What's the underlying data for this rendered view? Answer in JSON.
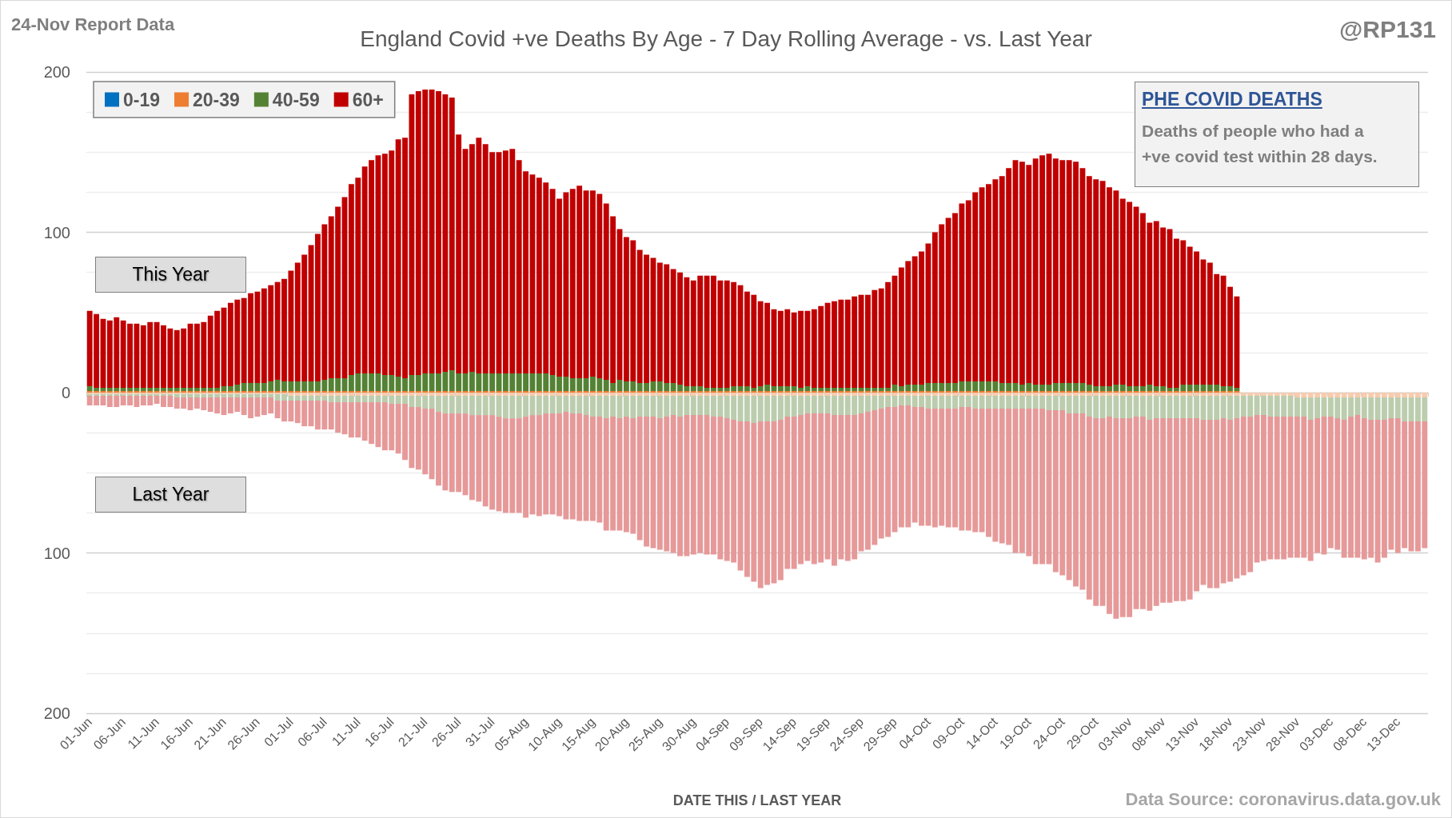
{
  "chart_data": {
    "type": "bar",
    "stacked": true,
    "title": "England Covid +ve Deaths By Age - 7 Day Rolling Average - vs. Last Year",
    "xlabel": "DATE THIS / LAST YEAR",
    "annotations": [
      "24-Nov Report Data",
      "@RP131",
      "This Year",
      "Last Year",
      "PHE COVID DEATHS",
      "Deaths of people who had a +ve covid test within 28 days.",
      "Data Source: coronavirus.data.gov.uk"
    ],
    "categories": [
      "01-Jun",
      null,
      null,
      null,
      null,
      "06-Jun",
      null,
      null,
      null,
      null,
      "11-Jun",
      null,
      null,
      null,
      null,
      "16-Jun",
      null,
      null,
      null,
      null,
      "21-Jun",
      null,
      null,
      null,
      null,
      "26-Jun",
      null,
      null,
      null,
      null,
      "01-Jul",
      null,
      null,
      null,
      null,
      "06-Jul",
      null,
      null,
      null,
      null,
      "11-Jul",
      null,
      null,
      null,
      null,
      "16-Jul",
      null,
      null,
      null,
      null,
      "21-Jul",
      null,
      null,
      null,
      null,
      "26-Jul",
      null,
      null,
      null,
      null,
      "31-Jul",
      null,
      null,
      null,
      null,
      "05-Aug",
      null,
      null,
      null,
      null,
      "10-Aug",
      null,
      null,
      null,
      null,
      "15-Aug",
      null,
      null,
      null,
      null,
      "20-Aug",
      null,
      null,
      null,
      null,
      "25-Aug",
      null,
      null,
      null,
      null,
      "30-Aug",
      null,
      null,
      null,
      null,
      "04-Sep",
      null,
      null,
      null,
      null,
      "09-Sep",
      null,
      null,
      null,
      null,
      "14-Sep",
      null,
      null,
      null,
      null,
      "19-Sep",
      null,
      null,
      null,
      null,
      "24-Sep",
      null,
      null,
      null,
      null,
      "29-Sep",
      null,
      null,
      null,
      null,
      "04-Oct",
      null,
      null,
      null,
      null,
      "09-Oct",
      null,
      null,
      null,
      null,
      "14-Oct",
      null,
      null,
      null,
      null,
      "19-Oct",
      null,
      null,
      null,
      null,
      "24-Oct",
      null,
      null,
      null,
      null,
      "29-Oct",
      null,
      null,
      null,
      null,
      "03-Nov",
      null,
      null,
      null,
      null,
      "08-Nov",
      null,
      null,
      null,
      null,
      "13-Nov",
      null,
      null,
      null,
      null,
      "18-Nov",
      null,
      null,
      null,
      null,
      "23-Nov",
      null,
      null,
      null,
      null,
      "28-Nov",
      null,
      null,
      null,
      null,
      "03-Dec",
      null,
      null,
      null,
      null,
      "08-Dec",
      null,
      null,
      null,
      null,
      "13-Dec",
      null,
      null,
      null,
      null
    ],
    "series": [
      {
        "name": "0-19",
        "color": "#0070c0",
        "values": [
          0,
          0,
          0,
          0,
          0,
          0,
          0,
          0,
          0,
          0,
          0,
          0,
          0,
          0,
          0,
          0,
          0,
          0,
          0,
          0,
          0,
          0,
          0,
          0,
          0,
          0,
          0,
          0,
          0,
          0,
          0,
          0,
          0,
          0,
          0,
          0,
          0,
          0,
          0,
          0,
          0,
          0,
          0,
          0,
          0,
          0,
          0,
          0,
          0,
          0,
          0,
          0,
          0,
          0,
          0,
          0,
          0,
          0,
          0,
          0,
          0,
          0,
          0,
          0,
          0,
          0,
          0,
          0,
          0,
          0,
          0,
          0,
          0,
          0,
          0,
          0,
          0,
          0,
          0,
          0,
          0,
          0,
          0,
          0,
          0,
          0,
          0,
          0,
          0,
          0,
          0,
          0,
          0,
          0,
          0,
          0,
          0,
          0,
          0,
          0,
          0,
          0,
          0,
          0,
          0,
          0,
          0,
          0,
          0,
          0,
          0,
          0,
          0,
          0,
          0,
          0,
          0,
          0,
          0,
          0,
          0,
          0,
          0,
          0,
          0,
          0,
          0,
          0,
          0,
          0,
          0,
          0,
          0,
          0,
          0,
          0,
          0,
          0,
          0,
          0,
          0,
          0,
          0,
          0,
          0,
          0,
          0,
          0,
          0,
          0,
          0,
          0,
          0,
          0,
          0,
          0,
          0,
          0,
          0,
          0,
          0,
          0,
          0,
          0,
          0,
          0,
          0,
          0,
          0,
          0,
          0,
          0,
          null,
          null,
          null,
          null,
          null,
          null,
          null,
          null,
          null,
          null,
          null,
          null,
          null,
          null,
          null,
          null,
          null,
          null,
          null,
          null,
          null,
          null,
          null,
          null,
          null,
          null,
          null,
          null
        ]
      },
      {
        "name": "20-39",
        "color": "#ed7d31",
        "values": [
          1,
          1,
          1,
          1,
          1,
          1,
          1,
          1,
          1,
          1,
          1,
          1,
          1,
          1,
          1,
          1,
          1,
          1,
          1,
          1,
          1,
          1,
          1,
          1,
          1,
          1,
          1,
          1,
          1,
          1,
          1,
          1,
          1,
          1,
          1,
          1,
          1,
          1,
          1,
          1,
          1,
          1,
          1,
          1,
          1,
          1,
          1,
          1,
          1,
          1,
          1,
          1,
          1,
          1,
          1,
          1,
          1,
          1,
          1,
          1,
          1,
          1,
          1,
          1,
          1,
          1,
          1,
          1,
          1,
          1,
          1,
          1,
          1,
          1,
          1,
          1,
          1,
          1,
          1,
          1,
          1,
          1,
          1,
          1,
          1,
          1,
          1,
          1,
          1,
          1,
          1,
          1,
          1,
          1,
          1,
          1,
          1,
          1,
          1,
          1,
          1,
          1,
          1,
          1,
          1,
          1,
          1,
          1,
          1,
          1,
          1,
          1,
          1,
          1,
          1,
          1,
          1,
          1,
          1,
          1,
          1,
          1,
          1,
          1,
          1,
          1,
          1,
          1,
          1,
          1,
          1,
          1,
          1,
          1,
          1,
          1,
          1,
          1,
          1,
          1,
          1,
          1,
          1,
          1,
          1,
          1,
          1,
          1,
          1,
          1,
          1,
          1,
          1,
          1,
          1,
          1,
          1,
          1,
          1,
          1,
          1,
          1,
          1,
          1,
          1,
          1,
          1,
          1,
          1,
          1,
          1,
          1,
          null,
          null,
          null,
          null,
          null,
          null,
          null,
          null,
          null,
          null,
          null,
          null,
          null,
          null,
          null,
          null,
          null,
          null,
          null,
          null,
          null,
          null,
          null,
          null,
          null,
          null,
          null,
          null
        ]
      },
      {
        "name": "40-59",
        "color": "#548235",
        "values": [
          3,
          2,
          2,
          2,
          2,
          2,
          2,
          2,
          2,
          2,
          2,
          2,
          2,
          2,
          2,
          2,
          2,
          2,
          2,
          2,
          3,
          3,
          4,
          5,
          5,
          5,
          5,
          6,
          7,
          6,
          6,
          6,
          6,
          6,
          6,
          7,
          8,
          8,
          8,
          10,
          11,
          11,
          11,
          11,
          10,
          10,
          9,
          8,
          10,
          10,
          11,
          11,
          11,
          12,
          13,
          11,
          11,
          12,
          11,
          11,
          11,
          11,
          11,
          11,
          11,
          11,
          11,
          11,
          11,
          10,
          9,
          9,
          8,
          8,
          8,
          9,
          8,
          7,
          5,
          7,
          6,
          6,
          5,
          5,
          6,
          6,
          5,
          5,
          4,
          3,
          3,
          3,
          2,
          2,
          2,
          2,
          3,
          3,
          3,
          2,
          3,
          4,
          3,
          3,
          3,
          3,
          2,
          3,
          2,
          2,
          2,
          2,
          2,
          2,
          2,
          2,
          2,
          2,
          2,
          2,
          4,
          3,
          4,
          4,
          4,
          5,
          5,
          5,
          5,
          5,
          6,
          6,
          6,
          6,
          6,
          6,
          5,
          5,
          5,
          4,
          5,
          4,
          4,
          4,
          5,
          5,
          5,
          5,
          5,
          4,
          3,
          3,
          3,
          4,
          4,
          3,
          3,
          3,
          4,
          3,
          3,
          2,
          2,
          4,
          4,
          4,
          4,
          4,
          4,
          3,
          3,
          2,
          null,
          null,
          null,
          null,
          null,
          null,
          null,
          null,
          null,
          null,
          null,
          null,
          null,
          null,
          null,
          null,
          null,
          null,
          null,
          null,
          null,
          null,
          null,
          null,
          null,
          null,
          null,
          null
        ]
      },
      {
        "name": "60+",
        "color": "#c00000",
        "values": [
          47,
          46,
          43,
          42,
          44,
          42,
          40,
          40,
          39,
          41,
          41,
          39,
          37,
          36,
          37,
          40,
          40,
          41,
          45,
          48,
          49,
          52,
          53,
          53,
          56,
          57,
          59,
          60,
          61,
          64,
          69,
          74,
          79,
          85,
          92,
          97,
          101,
          107,
          113,
          119,
          122,
          129,
          133,
          136,
          138,
          140,
          148,
          150,
          175,
          177,
          177,
          177,
          176,
          173,
          170,
          149,
          140,
          142,
          147,
          143,
          138,
          138,
          139,
          140,
          133,
          126,
          124,
          122,
          119,
          116,
          111,
          115,
          118,
          120,
          117,
          116,
          115,
          110,
          104,
          94,
          90,
          88,
          83,
          80,
          77,
          74,
          74,
          71,
          70,
          68,
          66,
          69,
          70,
          70,
          67,
          67,
          65,
          63,
          59,
          58,
          53,
          51,
          48,
          47,
          48,
          46,
          48,
          47,
          49,
          51,
          53,
          54,
          55,
          55,
          57,
          58,
          58,
          61,
          62,
          66,
          68,
          74,
          77,
          80,
          83,
          87,
          94,
          99,
          103,
          106,
          111,
          113,
          118,
          121,
          123,
          126,
          129,
          134,
          139,
          139,
          136,
          141,
          143,
          144,
          140,
          139,
          139,
          138,
          134,
          130,
          129,
          128,
          124,
          121,
          116,
          115,
          112,
          108,
          101,
          103,
          99,
          99,
          93,
          90,
          86,
          83,
          78,
          76,
          69,
          69,
          62,
          57,
          null,
          null,
          null,
          null,
          null,
          null,
          null,
          null,
          null,
          null,
          null,
          null,
          null,
          null,
          null,
          null,
          null,
          null,
          null,
          null,
          null,
          null,
          null,
          null,
          null,
          null,
          null,
          null
        ]
      },
      {
        "color": "#f8cbad",
        "values": [
          -1,
          -1,
          -1,
          -1,
          -1,
          -1,
          -1,
          -1,
          -1,
          -1,
          -1,
          -1,
          -1,
          -1,
          -1,
          -1,
          -1,
          -1,
          -1,
          -1,
          -1,
          -1,
          -1,
          -1,
          -1,
          -1,
          -1,
          -1,
          -1,
          -1,
          -2,
          -2,
          -2,
          -2,
          -2,
          -2,
          -2,
          -2,
          -2,
          -2,
          -2,
          -2,
          -2,
          -2,
          -2,
          -2,
          -2,
          -2,
          -2,
          -2,
          -2,
          -2,
          -2,
          -2,
          -2,
          -2,
          -2,
          -2,
          -2,
          -2,
          -2,
          -2,
          -2,
          -2,
          -2,
          -2,
          -2,
          -2,
          -2,
          -2,
          -2,
          -2,
          -2,
          -2,
          -2,
          -2,
          -2,
          -2,
          -2,
          -2,
          -2,
          -2,
          -2,
          -2,
          -2,
          -2,
          -2,
          -2,
          -2,
          -2,
          -2,
          -2,
          -2,
          -2,
          -2,
          -2,
          -2,
          -2,
          -2,
          -2,
          -2,
          -2,
          -2,
          -2,
          -2,
          -2,
          -2,
          -2,
          -2,
          -2,
          -2,
          -2,
          -2,
          -2,
          -2,
          -2,
          -2,
          -2,
          -2,
          -2,
          -2,
          -2,
          -2,
          -2,
          -2,
          -2,
          -2,
          -2,
          -2,
          -2,
          -2,
          -2,
          -2,
          -2,
          -2,
          -2,
          -2,
          -2,
          -2,
          -2,
          -2,
          -2,
          -2,
          -2,
          -2,
          -2,
          -2,
          -2,
          -2,
          -2,
          -2,
          -2,
          -2,
          -2,
          -2,
          -2,
          -2,
          -2,
          -2,
          -2,
          -2,
          -2,
          -2,
          -2,
          -2,
          -2,
          -2,
          -2,
          -2,
          -2,
          -2,
          -2,
          -2,
          -2,
          -2,
          -2,
          -2,
          -2,
          -2,
          -2,
          -3,
          -3,
          -3,
          -3,
          -3,
          -3,
          -3,
          -3,
          -3,
          -3,
          -3,
          -3,
          -3,
          -3,
          -3,
          -3,
          -3,
          -3,
          -3,
          -3
        ]
      },
      {
        "color": "#bbcdae",
        "values": [
          -1,
          -1,
          -1,
          -1,
          -1,
          -1,
          -1,
          -1,
          -1,
          -1,
          -1,
          -1,
          -1,
          -2,
          -2,
          -2,
          -2,
          -2,
          -2,
          -2,
          -2,
          -2,
          -2,
          -2,
          -2,
          -2,
          -2,
          -2,
          -4,
          -4,
          -3,
          -3,
          -3,
          -3,
          -3,
          -3,
          -4,
          -4,
          -4,
          -4,
          -4,
          -4,
          -4,
          -4,
          -4,
          -5,
          -5,
          -5,
          -7,
          -7,
          -8,
          -8,
          -10,
          -11,
          -11,
          -11,
          -11,
          -12,
          -12,
          -12,
          -12,
          -13,
          -14,
          -14,
          -14,
          -13,
          -12,
          -12,
          -11,
          -11,
          -11,
          -10,
          -11,
          -11,
          -12,
          -13,
          -13,
          -14,
          -13,
          -14,
          -13,
          -14,
          -13,
          -13,
          -13,
          -14,
          -13,
          -12,
          -13,
          -12,
          -12,
          -12,
          -12,
          -13,
          -13,
          -14,
          -15,
          -16,
          -16,
          -17,
          -16,
          -16,
          -16,
          -15,
          -13,
          -13,
          -12,
          -11,
          -11,
          -11,
          -11,
          -12,
          -12,
          -12,
          -12,
          -11,
          -10,
          -9,
          -8,
          -7,
          -7,
          -6,
          -6,
          -7,
          -7,
          -8,
          -8,
          -8,
          -8,
          -8,
          -7,
          -7,
          -8,
          -8,
          -8,
          -8,
          -8,
          -8,
          -8,
          -8,
          -8,
          -8,
          -8,
          -9,
          -9,
          -9,
          -11,
          -11,
          -11,
          -13,
          -14,
          -14,
          -13,
          -14,
          -14,
          -14,
          -13,
          -13,
          -15,
          -14,
          -14,
          -14,
          -14,
          -14,
          -14,
          -14,
          -15,
          -15,
          -15,
          -14,
          -15,
          -14,
          -13,
          -13,
          -12,
          -12,
          -13,
          -13,
          -13,
          -13,
          -12,
          -12,
          -14,
          -13,
          -12,
          -12,
          -13,
          -14,
          -12,
          -11,
          -13,
          -14,
          -14,
          -14,
          -13,
          -13,
          -15,
          -15,
          -15,
          -15
        ]
      },
      {
        "color": "#e69999",
        "values": [
          -6,
          -6,
          -6,
          -7,
          -7,
          -6,
          -6,
          -7,
          -6,
          -6,
          -5,
          -7,
          -7,
          -7,
          -7,
          -8,
          -7,
          -8,
          -9,
          -10,
          -11,
          -10,
          -9,
          -11,
          -13,
          -12,
          -11,
          -10,
          -11,
          -13,
          -13,
          -14,
          -16,
          -16,
          -18,
          -18,
          -17,
          -19,
          -20,
          -22,
          -22,
          -24,
          -26,
          -28,
          -30,
          -29,
          -31,
          -35,
          -38,
          -39,
          -41,
          -44,
          -46,
          -48,
          -49,
          -49,
          -51,
          -53,
          -54,
          -57,
          -59,
          -59,
          -59,
          -59,
          -59,
          -63,
          -62,
          -63,
          -63,
          -63,
          -64,
          -67,
          -66,
          -67,
          -66,
          -65,
          -66,
          -70,
          -71,
          -70,
          -72,
          -72,
          -77,
          -81,
          -82,
          -82,
          -84,
          -86,
          -87,
          -88,
          -87,
          -86,
          -87,
          -86,
          -89,
          -89,
          -89,
          -93,
          -97,
          -99,
          -104,
          -102,
          -101,
          -100,
          -95,
          -95,
          -93,
          -92,
          -94,
          -93,
          -91,
          -94,
          -90,
          -91,
          -90,
          -86,
          -86,
          -84,
          -81,
          -81,
          -78,
          -76,
          -76,
          -72,
          -74,
          -73,
          -74,
          -73,
          -74,
          -74,
          -77,
          -77,
          -77,
          -77,
          -80,
          -83,
          -84,
          -85,
          -90,
          -90,
          -92,
          -97,
          -97,
          -96,
          -101,
          -103,
          -104,
          -108,
          -110,
          -114,
          -117,
          -117,
          -123,
          -125,
          -124,
          -124,
          -120,
          -120,
          -119,
          -117,
          -115,
          -115,
          -114,
          -114,
          -113,
          -108,
          -103,
          -105,
          -105,
          -103,
          -101,
          -100,
          -99,
          -97,
          -92,
          -91,
          -89,
          -89,
          -89,
          -88,
          -88,
          -88,
          -88,
          -84,
          -86,
          -82,
          -82,
          -86,
          -88,
          -89,
          -88,
          -86,
          -89,
          -86,
          -82,
          -84,
          -79,
          -81,
          -81,
          -79
        ]
      }
    ],
    "ylim": [
      -200,
      200
    ],
    "yticks": [
      {
        "value": -200,
        "label": "200"
      },
      {
        "value": -175,
        "label": null
      },
      {
        "value": -150,
        "label": null
      },
      {
        "value": -125,
        "label": null
      },
      {
        "value": -100,
        "label": "100"
      },
      {
        "value": -75,
        "label": null
      },
      {
        "value": -50,
        "label": null
      },
      {
        "value": -25,
        "label": null
      },
      0,
      {
        "value": 25,
        "label": null
      },
      {
        "value": 50,
        "label": null
      },
      {
        "value": 75,
        "label": null
      },
      100,
      {
        "value": 125,
        "label": null
      },
      {
        "value": 150,
        "label": null
      },
      {
        "value": 175,
        "label": null
      },
      200
    ],
    "grid": "y",
    "legend": "top left"
  }
}
